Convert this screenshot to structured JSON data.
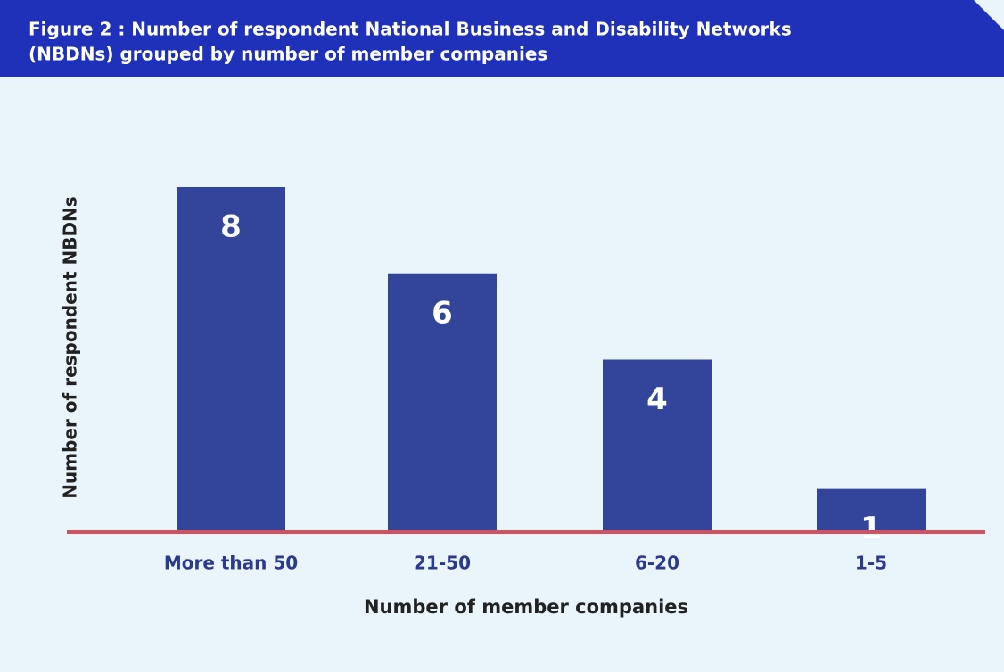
{
  "chart_data": {
    "type": "bar",
    "title": [
      "Figure 2 : Number of respondent National Business and Disability Networks",
      "(NBDNs) grouped by number of member companies"
    ],
    "categories": [
      "More than 50",
      "21-50",
      "6-20",
      "1-5"
    ],
    "values": [
      8,
      6,
      4,
      1
    ],
    "color": "#33459a",
    "xlabel": "Number of member companies",
    "ylabel": "Number of respondent NBDNs"
  }
}
